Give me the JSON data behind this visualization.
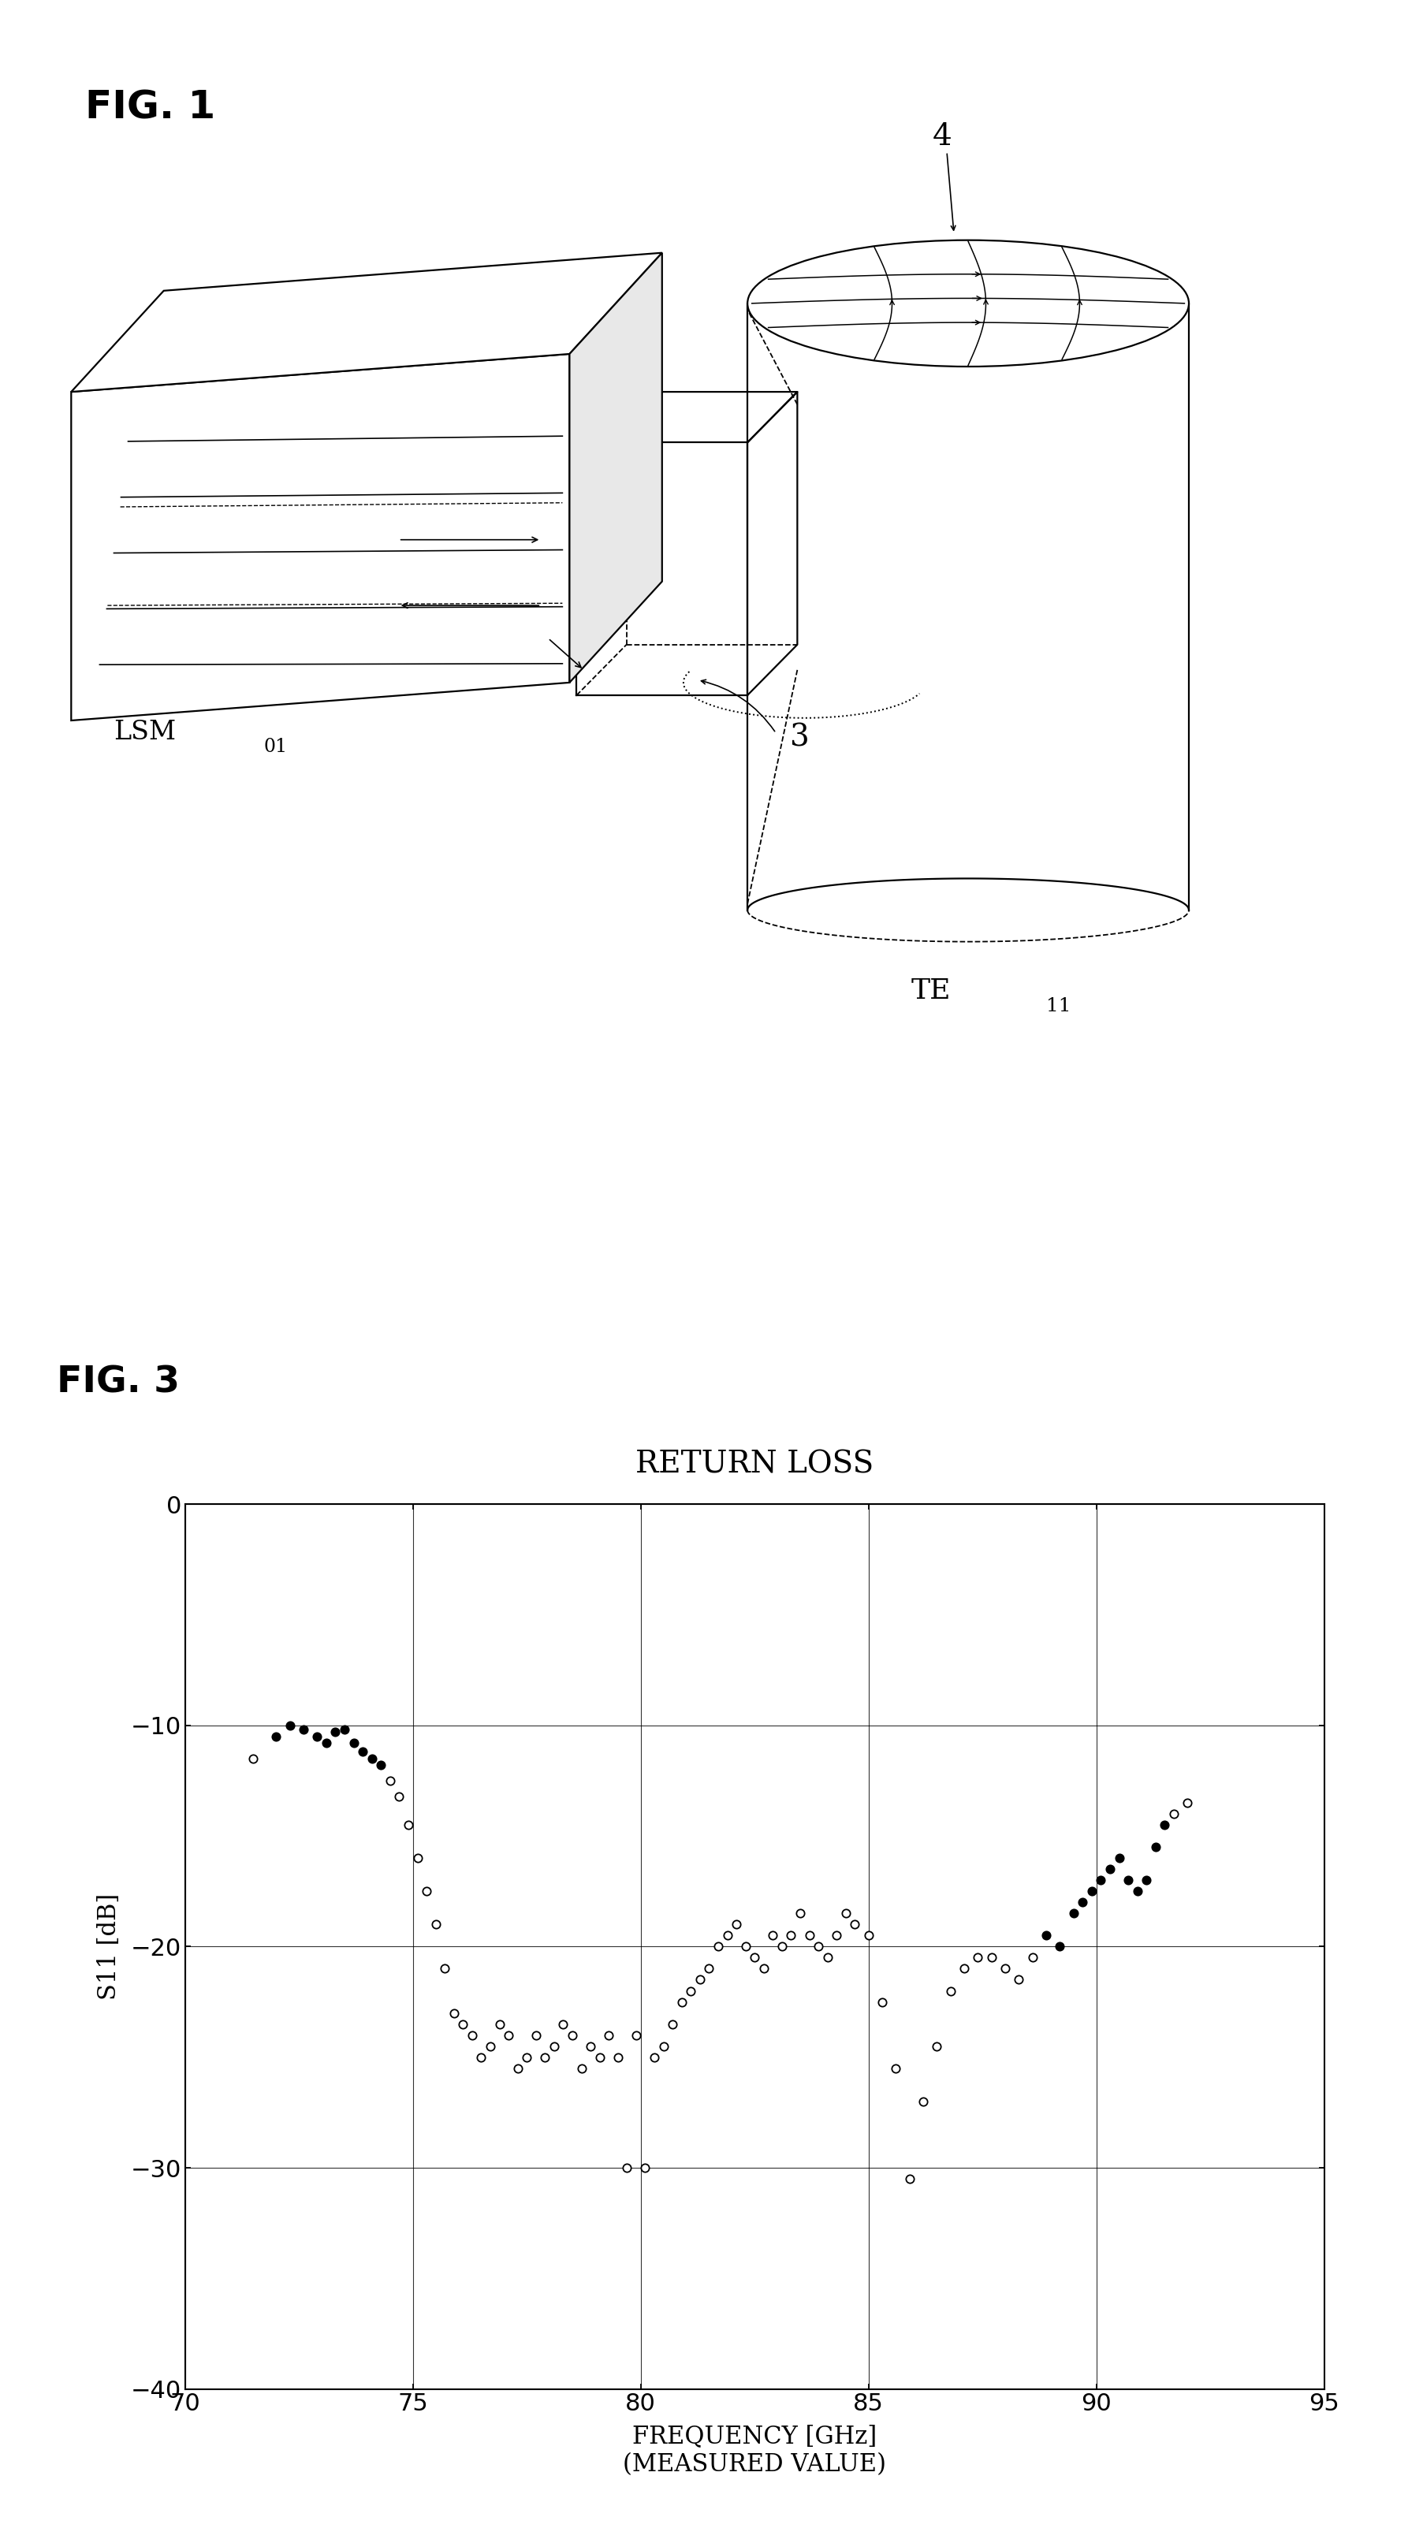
{
  "fig1_label": "FIG. 1",
  "fig3_label": "FIG. 3",
  "graph_title": "RETURN LOSS",
  "xlabel_line1": "FREQUENCY [GHz]",
  "xlabel_line2": "(MEASURED VALUE)",
  "ylabel": "S11 [dB]",
  "xlim": [
    70,
    95
  ],
  "ylim": [
    -40,
    0
  ],
  "xticks": [
    70,
    75,
    80,
    85,
    90,
    95
  ],
  "yticks": [
    0,
    -10,
    -20,
    -30,
    -40
  ],
  "label_LSM": "LSM",
  "label_LSM_sub": "01",
  "label_TE": "TE",
  "label_TE_sub": "11",
  "label_3": "3",
  "label_4": "4",
  "scatter_freq": [
    71.5,
    72.0,
    72.3,
    72.6,
    72.9,
    73.1,
    73.3,
    73.5,
    73.7,
    73.9,
    74.1,
    74.3,
    74.5,
    74.7,
    74.9,
    75.1,
    75.3,
    75.5,
    75.7,
    75.9,
    76.1,
    76.3,
    76.5,
    76.7,
    76.9,
    77.1,
    77.3,
    77.5,
    77.7,
    77.9,
    78.1,
    78.3,
    78.5,
    78.7,
    78.9,
    79.1,
    79.3,
    79.5,
    79.7,
    79.9,
    80.1,
    80.3,
    80.5,
    80.7,
    80.9,
    81.1,
    81.3,
    81.5,
    81.7,
    81.9,
    82.1,
    82.3,
    82.5,
    82.7,
    82.9,
    83.1,
    83.3,
    83.5,
    83.7,
    83.9,
    84.1,
    84.3,
    84.5,
    84.7,
    85.0,
    85.3,
    85.6,
    85.9,
    86.2,
    86.5,
    86.8,
    87.1,
    87.4,
    87.7,
    88.0,
    88.3,
    88.6,
    88.9,
    89.2,
    89.5,
    89.7,
    89.9,
    90.1,
    90.3,
    90.5,
    90.7,
    90.9,
    91.1,
    91.3,
    91.5,
    91.7,
    92.0
  ],
  "scatter_s11": [
    -11.5,
    -10.5,
    -10.0,
    -10.2,
    -10.5,
    -10.8,
    -10.3,
    -10.2,
    -10.8,
    -11.2,
    -11.5,
    -11.8,
    -12.5,
    -13.2,
    -14.5,
    -16.0,
    -17.5,
    -19.0,
    -21.0,
    -23.0,
    -23.5,
    -24.0,
    -25.0,
    -24.5,
    -23.5,
    -24.0,
    -25.5,
    -25.0,
    -24.0,
    -25.0,
    -24.5,
    -23.5,
    -24.0,
    -25.5,
    -24.5,
    -25.0,
    -24.0,
    -25.0,
    -30.0,
    -24.0,
    -30.0,
    -25.0,
    -24.5,
    -23.5,
    -22.5,
    -22.0,
    -21.5,
    -21.0,
    -20.0,
    -19.5,
    -19.0,
    -20.0,
    -20.5,
    -21.0,
    -19.5,
    -20.0,
    -19.5,
    -18.5,
    -19.5,
    -20.0,
    -20.5,
    -19.5,
    -18.5,
    -19.0,
    -19.5,
    -22.5,
    -25.5,
    -30.5,
    -27.0,
    -24.5,
    -22.0,
    -21.0,
    -20.5,
    -20.5,
    -21.0,
    -21.5,
    -20.5,
    -19.5,
    -20.0,
    -18.5,
    -18.0,
    -17.5,
    -17.0,
    -16.5,
    -16.0,
    -17.0,
    -17.5,
    -17.0,
    -15.5,
    -14.5,
    -14.0,
    -13.5
  ],
  "bg_color": "#ffffff"
}
